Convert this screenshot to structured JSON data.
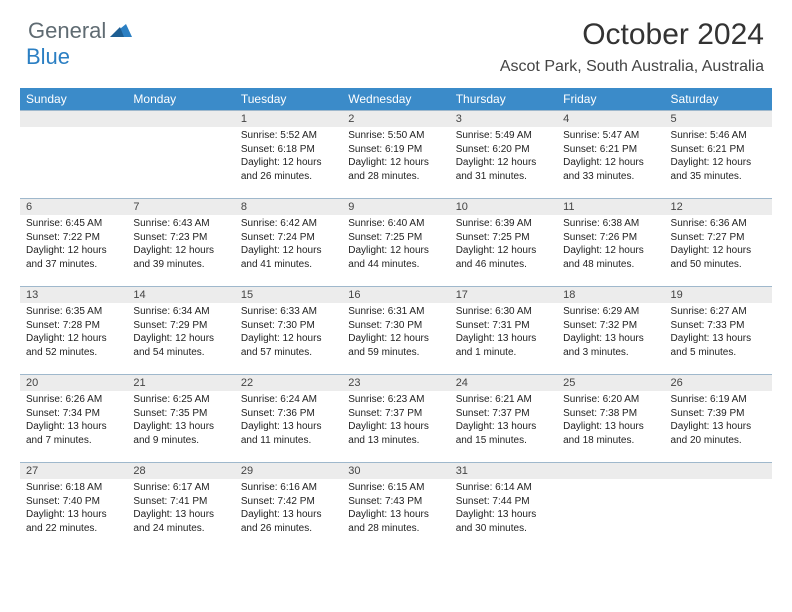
{
  "logo": {
    "text1": "General",
    "text2": "Blue"
  },
  "title": "October 2024",
  "location": "Ascot Park, South Australia, Australia",
  "colors": {
    "header_bg": "#3b8bc9",
    "daybar_bg": "#ececec",
    "border": "#9fb8cc"
  },
  "headers": [
    "Sunday",
    "Monday",
    "Tuesday",
    "Wednesday",
    "Thursday",
    "Friday",
    "Saturday"
  ],
  "weeks": [
    [
      null,
      null,
      {
        "n": "1",
        "sr": "Sunrise: 5:52 AM",
        "ss": "Sunset: 6:18 PM",
        "dl": "Daylight: 12 hours and 26 minutes."
      },
      {
        "n": "2",
        "sr": "Sunrise: 5:50 AM",
        "ss": "Sunset: 6:19 PM",
        "dl": "Daylight: 12 hours and 28 minutes."
      },
      {
        "n": "3",
        "sr": "Sunrise: 5:49 AM",
        "ss": "Sunset: 6:20 PM",
        "dl": "Daylight: 12 hours and 31 minutes."
      },
      {
        "n": "4",
        "sr": "Sunrise: 5:47 AM",
        "ss": "Sunset: 6:21 PM",
        "dl": "Daylight: 12 hours and 33 minutes."
      },
      {
        "n": "5",
        "sr": "Sunrise: 5:46 AM",
        "ss": "Sunset: 6:21 PM",
        "dl": "Daylight: 12 hours and 35 minutes."
      }
    ],
    [
      {
        "n": "6",
        "sr": "Sunrise: 6:45 AM",
        "ss": "Sunset: 7:22 PM",
        "dl": "Daylight: 12 hours and 37 minutes."
      },
      {
        "n": "7",
        "sr": "Sunrise: 6:43 AM",
        "ss": "Sunset: 7:23 PM",
        "dl": "Daylight: 12 hours and 39 minutes."
      },
      {
        "n": "8",
        "sr": "Sunrise: 6:42 AM",
        "ss": "Sunset: 7:24 PM",
        "dl": "Daylight: 12 hours and 41 minutes."
      },
      {
        "n": "9",
        "sr": "Sunrise: 6:40 AM",
        "ss": "Sunset: 7:25 PM",
        "dl": "Daylight: 12 hours and 44 minutes."
      },
      {
        "n": "10",
        "sr": "Sunrise: 6:39 AM",
        "ss": "Sunset: 7:25 PM",
        "dl": "Daylight: 12 hours and 46 minutes."
      },
      {
        "n": "11",
        "sr": "Sunrise: 6:38 AM",
        "ss": "Sunset: 7:26 PM",
        "dl": "Daylight: 12 hours and 48 minutes."
      },
      {
        "n": "12",
        "sr": "Sunrise: 6:36 AM",
        "ss": "Sunset: 7:27 PM",
        "dl": "Daylight: 12 hours and 50 minutes."
      }
    ],
    [
      {
        "n": "13",
        "sr": "Sunrise: 6:35 AM",
        "ss": "Sunset: 7:28 PM",
        "dl": "Daylight: 12 hours and 52 minutes."
      },
      {
        "n": "14",
        "sr": "Sunrise: 6:34 AM",
        "ss": "Sunset: 7:29 PM",
        "dl": "Daylight: 12 hours and 54 minutes."
      },
      {
        "n": "15",
        "sr": "Sunrise: 6:33 AM",
        "ss": "Sunset: 7:30 PM",
        "dl": "Daylight: 12 hours and 57 minutes."
      },
      {
        "n": "16",
        "sr": "Sunrise: 6:31 AM",
        "ss": "Sunset: 7:30 PM",
        "dl": "Daylight: 12 hours and 59 minutes."
      },
      {
        "n": "17",
        "sr": "Sunrise: 6:30 AM",
        "ss": "Sunset: 7:31 PM",
        "dl": "Daylight: 13 hours and 1 minute."
      },
      {
        "n": "18",
        "sr": "Sunrise: 6:29 AM",
        "ss": "Sunset: 7:32 PM",
        "dl": "Daylight: 13 hours and 3 minutes."
      },
      {
        "n": "19",
        "sr": "Sunrise: 6:27 AM",
        "ss": "Sunset: 7:33 PM",
        "dl": "Daylight: 13 hours and 5 minutes."
      }
    ],
    [
      {
        "n": "20",
        "sr": "Sunrise: 6:26 AM",
        "ss": "Sunset: 7:34 PM",
        "dl": "Daylight: 13 hours and 7 minutes."
      },
      {
        "n": "21",
        "sr": "Sunrise: 6:25 AM",
        "ss": "Sunset: 7:35 PM",
        "dl": "Daylight: 13 hours and 9 minutes."
      },
      {
        "n": "22",
        "sr": "Sunrise: 6:24 AM",
        "ss": "Sunset: 7:36 PM",
        "dl": "Daylight: 13 hours and 11 minutes."
      },
      {
        "n": "23",
        "sr": "Sunrise: 6:23 AM",
        "ss": "Sunset: 7:37 PM",
        "dl": "Daylight: 13 hours and 13 minutes."
      },
      {
        "n": "24",
        "sr": "Sunrise: 6:21 AM",
        "ss": "Sunset: 7:37 PM",
        "dl": "Daylight: 13 hours and 15 minutes."
      },
      {
        "n": "25",
        "sr": "Sunrise: 6:20 AM",
        "ss": "Sunset: 7:38 PM",
        "dl": "Daylight: 13 hours and 18 minutes."
      },
      {
        "n": "26",
        "sr": "Sunrise: 6:19 AM",
        "ss": "Sunset: 7:39 PM",
        "dl": "Daylight: 13 hours and 20 minutes."
      }
    ],
    [
      {
        "n": "27",
        "sr": "Sunrise: 6:18 AM",
        "ss": "Sunset: 7:40 PM",
        "dl": "Daylight: 13 hours and 22 minutes."
      },
      {
        "n": "28",
        "sr": "Sunrise: 6:17 AM",
        "ss": "Sunset: 7:41 PM",
        "dl": "Daylight: 13 hours and 24 minutes."
      },
      {
        "n": "29",
        "sr": "Sunrise: 6:16 AM",
        "ss": "Sunset: 7:42 PM",
        "dl": "Daylight: 13 hours and 26 minutes."
      },
      {
        "n": "30",
        "sr": "Sunrise: 6:15 AM",
        "ss": "Sunset: 7:43 PM",
        "dl": "Daylight: 13 hours and 28 minutes."
      },
      {
        "n": "31",
        "sr": "Sunrise: 6:14 AM",
        "ss": "Sunset: 7:44 PM",
        "dl": "Daylight: 13 hours and 30 minutes."
      },
      null,
      null
    ]
  ]
}
